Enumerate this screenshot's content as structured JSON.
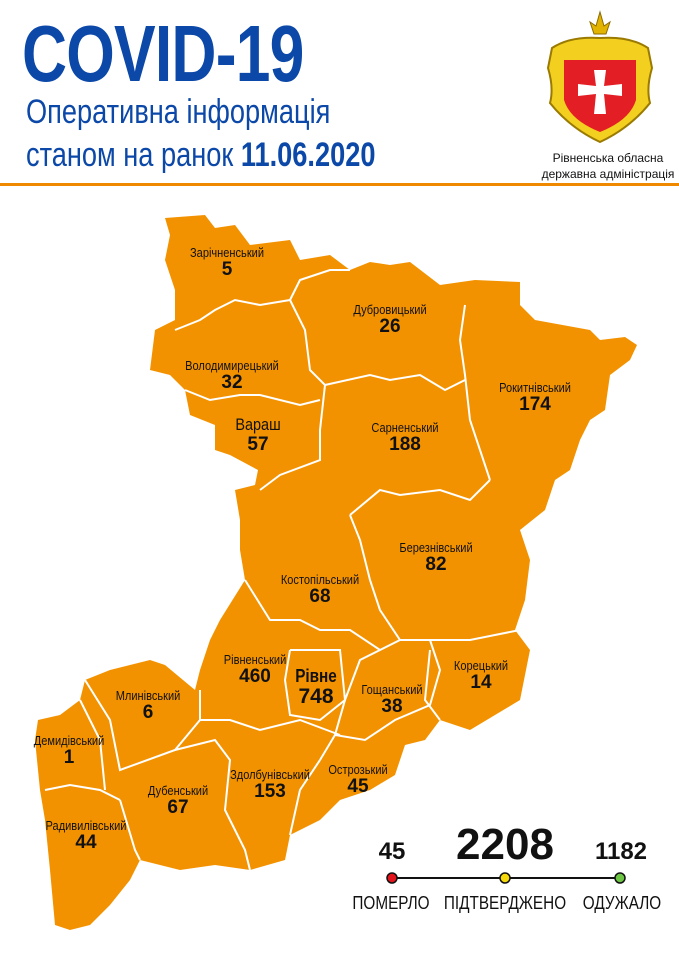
{
  "header": {
    "title": "COVID-19",
    "subtitle_line1": "Оперативна інформація",
    "subtitle_line2_prefix": "станом на ранок",
    "date": "11.06.2020",
    "org_line1": "Рівненська обласна",
    "org_line2": "державна адміністрація"
  },
  "colors": {
    "title": "#0b48a8",
    "map_fill": "#f39200",
    "accent_rule": "#ef8a00",
    "died": "#e3141b",
    "confirmed": "#f5d90a",
    "recovered": "#6cc644"
  },
  "districts": [
    {
      "name": "Зарічненський",
      "value": "5"
    },
    {
      "name": "Дубровицький",
      "value": "26"
    },
    {
      "name": "Володимирецький",
      "value": "32"
    },
    {
      "name": "Вараш",
      "value": "57"
    },
    {
      "name": "Сарненський",
      "value": "188"
    },
    {
      "name": "Рокитнівський",
      "value": "174"
    },
    {
      "name": "Березнівський",
      "value": "82"
    },
    {
      "name": "Костопільський",
      "value": "68"
    },
    {
      "name": "Рівненський",
      "value": "460"
    },
    {
      "name": "Рівне",
      "value": "748"
    },
    {
      "name": "Гощанський",
      "value": "38"
    },
    {
      "name": "Корецький",
      "value": "14"
    },
    {
      "name": "Млинівський",
      "value": "6"
    },
    {
      "name": "Демидівський",
      "value": "1"
    },
    {
      "name": "Дубенський",
      "value": "67"
    },
    {
      "name": "Здолбунівський",
      "value": "153"
    },
    {
      "name": "Острозький",
      "value": "45"
    },
    {
      "name": "Радивилівський",
      "value": "44"
    }
  ],
  "stats": {
    "died": {
      "value": "45",
      "label": "ПОМЕРЛО"
    },
    "confirmed": {
      "value": "2208",
      "label": "ПІДТВЕРДЖЕНО"
    },
    "recovered": {
      "value": "1182",
      "label": "ОДУЖАЛО"
    }
  }
}
